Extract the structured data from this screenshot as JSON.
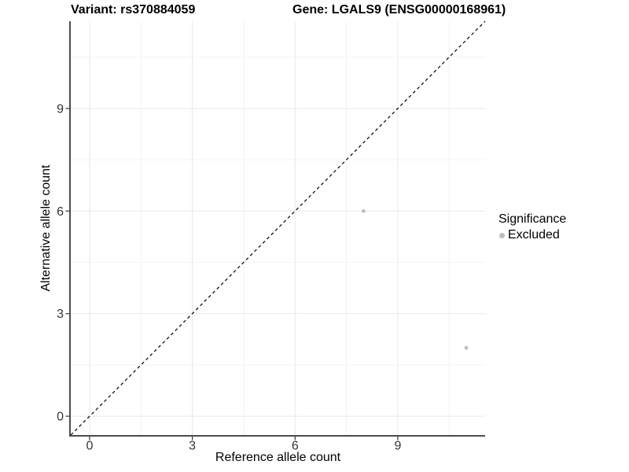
{
  "chart_data": {
    "type": "scatter",
    "title_left": "Variant: rs370884059",
    "title_right": "Gene: LGALS9 (ENSG00000168961)",
    "xlabel": "Reference allele count",
    "ylabel": "Alternative allele count",
    "xlim": [
      -0.55,
      11.55
    ],
    "ylim": [
      -0.55,
      11.55
    ],
    "xticks": [
      0,
      3,
      6,
      9
    ],
    "yticks": [
      0,
      3,
      6,
      9
    ],
    "grid_major": [
      0,
      3,
      6,
      9
    ],
    "grid_minor": [
      1.5,
      4.5,
      7.5,
      10.5
    ],
    "identity_line": {
      "style": "dashed",
      "color": "#000000"
    },
    "series": [
      {
        "name": "Excluded",
        "color": "#BEBEBE",
        "points": [
          [
            8,
            6
          ],
          [
            11,
            2
          ]
        ]
      }
    ],
    "legend": {
      "title": "Significance",
      "position": "right",
      "items": [
        {
          "label": "Excluded",
          "color": "#BEBEBE"
        }
      ]
    },
    "colors": {
      "background": "#FFFFFF",
      "grid_major": "#E8E8E8",
      "grid_minor": "#F3F3F3",
      "axis_line": "#4D4D4D",
      "tick_mark": "#333333",
      "tick_text": "#333333"
    }
  }
}
